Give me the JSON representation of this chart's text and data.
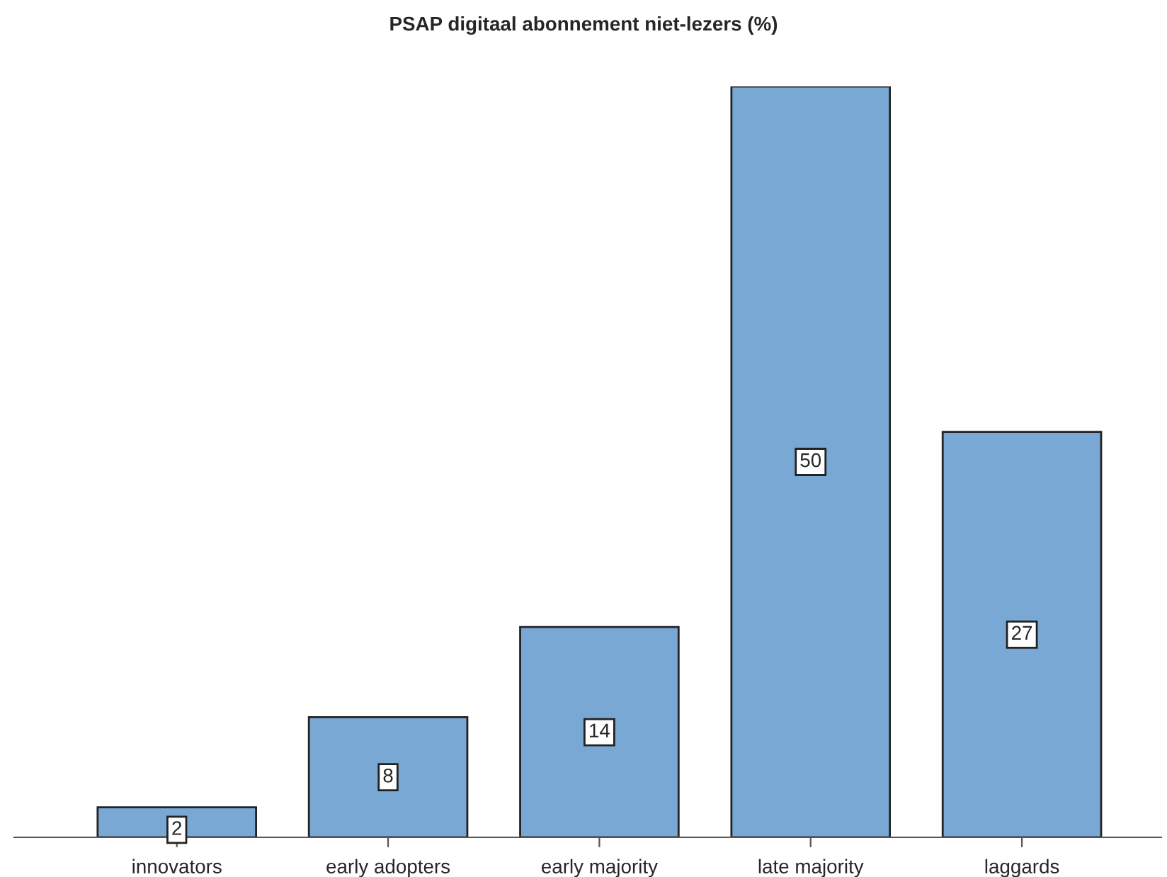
{
  "chart_data": {
    "type": "bar",
    "title": "PSAP digitaal abonnement niet-lezers (%)",
    "categories": [
      "innovators",
      "early adopters",
      "early majority",
      "late majority",
      "laggards"
    ],
    "values": [
      2,
      8,
      14,
      50,
      27
    ],
    "color": "#79a8d5",
    "data_labels": true,
    "grid": false,
    "legend": false
  }
}
